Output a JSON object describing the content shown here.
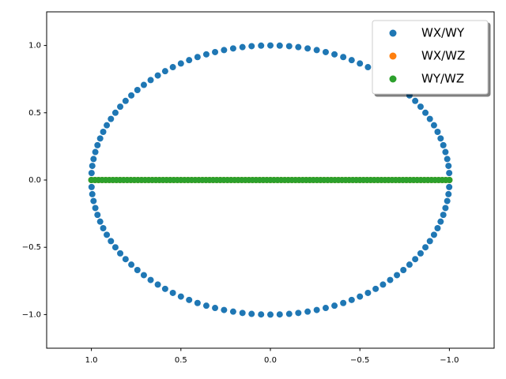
{
  "chart_data": {
    "type": "scatter",
    "xlim": [
      1.25,
      -1.25
    ],
    "ylim": [
      -1.25,
      1.25
    ],
    "xticks": [
      {
        "value": 1,
        "label": "1.0"
      },
      {
        "value": 0.5,
        "label": "0.5"
      },
      {
        "value": 0,
        "label": "0.0"
      },
      {
        "value": -0.5,
        "label": "−0.5"
      },
      {
        "value": -1,
        "label": "−1.0"
      }
    ],
    "yticks": [
      {
        "value": -1,
        "label": "−1.0"
      },
      {
        "value": -0.5,
        "label": "−0.5"
      },
      {
        "value": 0,
        "label": "0.0"
      },
      {
        "value": 0.5,
        "label": "0.5"
      },
      {
        "value": 1,
        "label": "1.0"
      }
    ],
    "grid": false,
    "legend": "upper right",
    "series": [
      {
        "name": "WX/WY",
        "color": "#1f77b4",
        "x": [
          1,
          0.999,
          0.995,
          0.988,
          0.978,
          0.966,
          0.951,
          0.934,
          0.914,
          0.891,
          0.866,
          0.839,
          0.809,
          0.777,
          0.743,
          0.707,
          0.669,
          0.629,
          0.588,
          0.545,
          0.5,
          0.454,
          0.407,
          0.358,
          0.309,
          0.259,
          0.208,
          0.156,
          0.105,
          0.052,
          0,
          -0.052,
          -0.105,
          -0.156,
          -0.208,
          -0.259,
          -0.309,
          -0.358,
          -0.407,
          -0.454,
          -0.5,
          -0.545,
          -0.588,
          -0.629,
          -0.669,
          -0.707,
          -0.743,
          -0.777,
          -0.809,
          -0.839,
          -0.866,
          -0.891,
          -0.914,
          -0.934,
          -0.951,
          -0.966,
          -0.978,
          -0.988,
          -0.995,
          -0.999,
          -1,
          -0.999,
          -0.995,
          -0.988,
          -0.978,
          -0.966,
          -0.951,
          -0.934,
          -0.914,
          -0.891,
          -0.866,
          -0.839,
          -0.809,
          -0.777,
          -0.743,
          -0.707,
          -0.669,
          -0.629,
          -0.588,
          -0.545,
          -0.5,
          -0.454,
          -0.407,
          -0.358,
          -0.309,
          -0.259,
          -0.208,
          -0.156,
          -0.105,
          -0.052,
          0,
          0.052,
          0.105,
          0.156,
          0.208,
          0.259,
          0.309,
          0.358,
          0.407,
          0.454,
          0.5,
          0.545,
          0.588,
          0.629,
          0.669,
          0.707,
          0.743,
          0.777,
          0.809,
          0.839,
          0.866,
          0.891,
          0.914,
          0.934,
          0.951,
          0.966,
          0.978,
          0.988,
          0.995,
          0.999
        ],
        "values": [
          0,
          0.052,
          0.105,
          0.156,
          0.208,
          0.259,
          0.309,
          0.358,
          0.407,
          0.454,
          0.5,
          0.545,
          0.588,
          0.629,
          0.669,
          0.707,
          0.743,
          0.777,
          0.809,
          0.839,
          0.866,
          0.891,
          0.914,
          0.934,
          0.951,
          0.966,
          0.978,
          0.988,
          0.995,
          0.999,
          1,
          0.999,
          0.995,
          0.988,
          0.978,
          0.966,
          0.951,
          0.934,
          0.914,
          0.891,
          0.866,
          0.839,
          0.809,
          0.777,
          0.743,
          0.707,
          0.669,
          0.629,
          0.588,
          0.545,
          0.5,
          0.454,
          0.407,
          0.358,
          0.309,
          0.259,
          0.208,
          0.156,
          0.105,
          0.052,
          0,
          -0.052,
          -0.105,
          -0.156,
          -0.208,
          -0.259,
          -0.309,
          -0.358,
          -0.407,
          -0.454,
          -0.5,
          -0.545,
          -0.588,
          -0.629,
          -0.669,
          -0.707,
          -0.743,
          -0.777,
          -0.809,
          -0.839,
          -0.866,
          -0.891,
          -0.914,
          -0.934,
          -0.951,
          -0.966,
          -0.978,
          -0.988,
          -0.995,
          -0.999,
          -1,
          -0.999,
          -0.995,
          -0.988,
          -0.978,
          -0.966,
          -0.951,
          -0.934,
          -0.914,
          -0.891,
          -0.866,
          -0.839,
          -0.809,
          -0.777,
          -0.743,
          -0.707,
          -0.669,
          -0.629,
          -0.588,
          -0.545,
          -0.5,
          -0.454,
          -0.407,
          -0.358,
          -0.309,
          -0.259,
          -0.208,
          -0.156,
          -0.105,
          -0.052
        ]
      },
      {
        "name": "WX/WZ",
        "color": "#ff7f0e",
        "x": [
          1,
          0.98,
          0.96,
          0.94,
          0.92,
          0.9,
          0.88,
          0.86,
          0.84,
          0.82,
          0.8,
          0.78,
          0.76,
          0.74,
          0.72,
          0.7,
          0.68,
          0.66,
          0.64,
          0.62,
          0.6,
          0.58,
          0.56,
          0.54,
          0.52,
          0.5,
          0.48,
          0.46,
          0.44,
          0.42,
          0.4,
          0.38,
          0.36,
          0.34,
          0.32,
          0.3,
          0.28,
          0.26,
          0.24,
          0.22,
          0.2,
          0.18,
          0.16,
          0.14,
          0.12,
          0.1,
          0.08,
          0.06,
          0.04,
          0.02,
          0,
          -0.02,
          -0.04,
          -0.06,
          -0.08,
          -0.1,
          -0.12,
          -0.14,
          -0.16,
          -0.18,
          -0.2,
          -0.22,
          -0.24,
          -0.26,
          -0.28,
          -0.3,
          -0.32,
          -0.34,
          -0.36,
          -0.38,
          -0.4,
          -0.42,
          -0.44,
          -0.46,
          -0.48,
          -0.5,
          -0.52,
          -0.54,
          -0.56,
          -0.58,
          -0.6,
          -0.62,
          -0.64,
          -0.66,
          -0.68,
          -0.7,
          -0.72,
          -0.74,
          -0.76,
          -0.78,
          -0.8,
          -0.82,
          -0.84,
          -0.86,
          -0.88,
          -0.9,
          -0.92,
          -0.94,
          -0.96,
          -0.98,
          -1
        ],
        "values": [
          0,
          0,
          0,
          0,
          0,
          0,
          0,
          0,
          0,
          0,
          0,
          0,
          0,
          0,
          0,
          0,
          0,
          0,
          0,
          0,
          0,
          0,
          0,
          0,
          0,
          0,
          0,
          0,
          0,
          0,
          0,
          0,
          0,
          0,
          0,
          0,
          0,
          0,
          0,
          0,
          0,
          0,
          0,
          0,
          0,
          0,
          0,
          0,
          0,
          0,
          0,
          0,
          0,
          0,
          0,
          0,
          0,
          0,
          0,
          0,
          0,
          0,
          0,
          0,
          0,
          0,
          0,
          0,
          0,
          0,
          0,
          0,
          0,
          0,
          0,
          0,
          0,
          0,
          0,
          0,
          0,
          0,
          0,
          0,
          0,
          0,
          0,
          0,
          0,
          0,
          0,
          0,
          0,
          0,
          0,
          0,
          0,
          0,
          0,
          0,
          0
        ]
      },
      {
        "name": "WY/WZ",
        "color": "#2ca02c",
        "x": [
          1,
          0.98,
          0.96,
          0.94,
          0.92,
          0.9,
          0.88,
          0.86,
          0.84,
          0.82,
          0.8,
          0.78,
          0.76,
          0.74,
          0.72,
          0.7,
          0.68,
          0.66,
          0.64,
          0.62,
          0.6,
          0.58,
          0.56,
          0.54,
          0.52,
          0.5,
          0.48,
          0.46,
          0.44,
          0.42,
          0.4,
          0.38,
          0.36,
          0.34,
          0.32,
          0.3,
          0.28,
          0.26,
          0.24,
          0.22,
          0.2,
          0.18,
          0.16,
          0.14,
          0.12,
          0.1,
          0.08,
          0.06,
          0.04,
          0.02,
          0,
          -0.02,
          -0.04,
          -0.06,
          -0.08,
          -0.1,
          -0.12,
          -0.14,
          -0.16,
          -0.18,
          -0.2,
          -0.22,
          -0.24,
          -0.26,
          -0.28,
          -0.3,
          -0.32,
          -0.34,
          -0.36,
          -0.38,
          -0.4,
          -0.42,
          -0.44,
          -0.46,
          -0.48,
          -0.5,
          -0.52,
          -0.54,
          -0.56,
          -0.58,
          -0.6,
          -0.62,
          -0.64,
          -0.66,
          -0.68,
          -0.7,
          -0.72,
          -0.74,
          -0.76,
          -0.78,
          -0.8,
          -0.82,
          -0.84,
          -0.86,
          -0.88,
          -0.9,
          -0.92,
          -0.94,
          -0.96,
          -0.98,
          -1
        ],
        "values": [
          0,
          0,
          0,
          0,
          0,
          0,
          0,
          0,
          0,
          0,
          0,
          0,
          0,
          0,
          0,
          0,
          0,
          0,
          0,
          0,
          0,
          0,
          0,
          0,
          0,
          0,
          0,
          0,
          0,
          0,
          0,
          0,
          0,
          0,
          0,
          0,
          0,
          0,
          0,
          0,
          0,
          0,
          0,
          0,
          0,
          0,
          0,
          0,
          0,
          0,
          0,
          0,
          0,
          0,
          0,
          0,
          0,
          0,
          0,
          0,
          0,
          0,
          0,
          0,
          0,
          0,
          0,
          0,
          0,
          0,
          0,
          0,
          0,
          0,
          0,
          0,
          0,
          0,
          0,
          0,
          0,
          0,
          0,
          0,
          0,
          0,
          0,
          0,
          0,
          0,
          0,
          0,
          0,
          0,
          0,
          0,
          0,
          0,
          0,
          0,
          0
        ]
      }
    ]
  }
}
